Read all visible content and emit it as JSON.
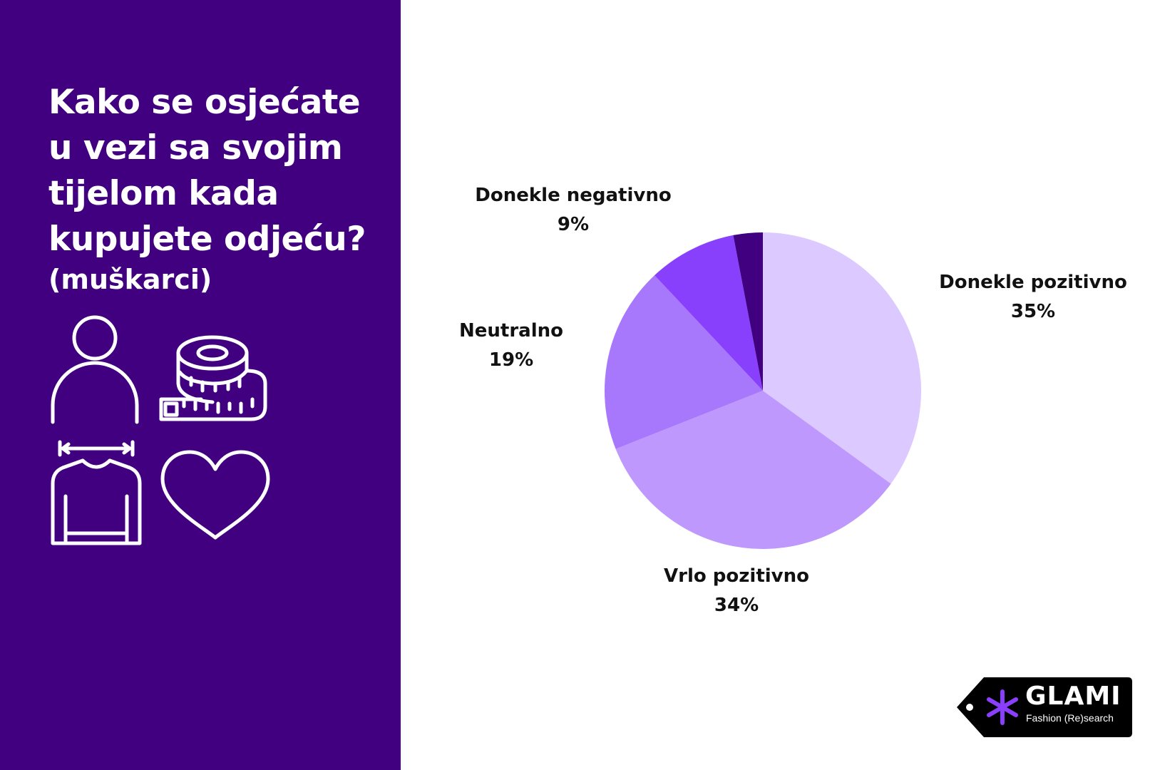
{
  "title": "Kako se osjećate\nu vezi sa svojim\ntijelom kada\nkupujete odjeću?",
  "subtitle": "(muškarci)",
  "icons": [
    "person-icon",
    "measuring-tape-icon",
    "shirt-icon",
    "heart-icon"
  ],
  "colors": {
    "panel": "#400080",
    "slice_vp": "#be98fc",
    "slice_dp": "#dcc9ff",
    "slice_n": "#a777fc",
    "slice_dn": "#8840fc",
    "slice_vn": "#400080"
  },
  "chart_data": {
    "type": "pie",
    "title": "Kako se osjećate u vezi sa svojim tijelom kada kupujete odjeću?",
    "subtitle": "(muškarci)",
    "slices": [
      {
        "name": "Donekle pozitivno",
        "value": 35,
        "label": "35%",
        "color": "#dcc9ff"
      },
      {
        "name": "Vrlo pozitivno",
        "value": 34,
        "label": "34%",
        "color": "#be98fc"
      },
      {
        "name": "Neutralno",
        "value": 19,
        "label": "19%",
        "color": "#a777fc"
      },
      {
        "name": "Donekle negativno",
        "value": 9,
        "label": "9%",
        "color": "#8840fc"
      },
      {
        "name": "",
        "value": 3,
        "label": "",
        "color": "#400080"
      }
    ],
    "start": "12 o'clock, clockwise",
    "legend": "none"
  },
  "logo": {
    "name": "GLAMI",
    "tagline": "Fashion (Re)search",
    "color": "#000000",
    "accent": "#8a3ffc"
  }
}
